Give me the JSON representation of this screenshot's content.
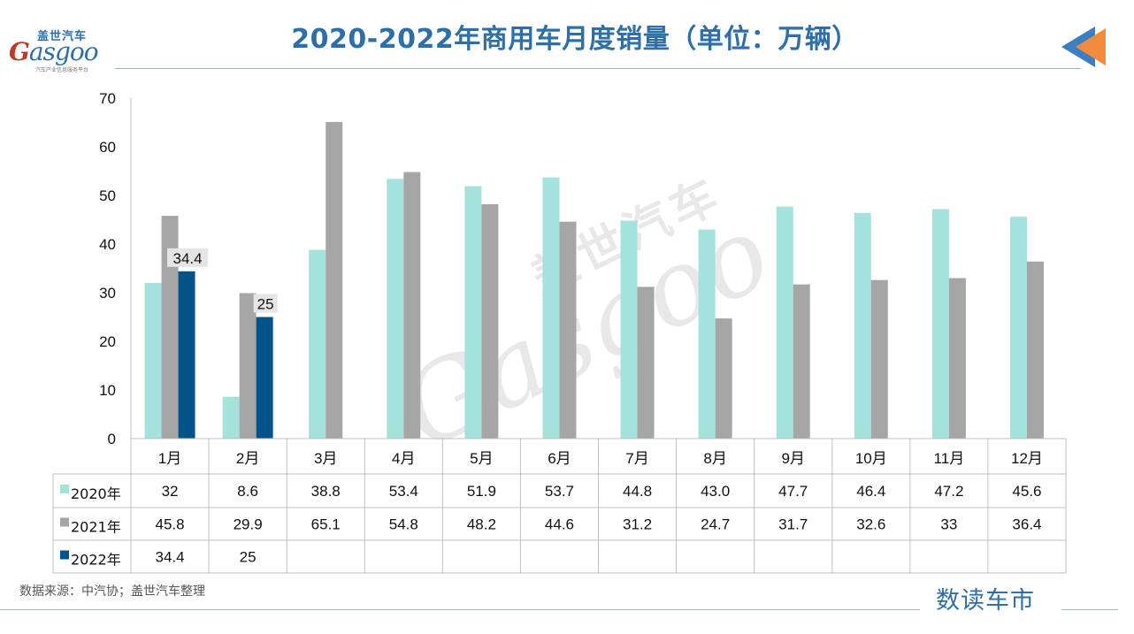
{
  "header": {
    "title": "2020-2022年商用车月度销量（单位：万辆）",
    "logo_cn": "盖世汽车",
    "logo_en_initial": "G",
    "logo_en_rest": "asgoo",
    "logo_sub": "汽车产业信息服务平台"
  },
  "watermark": {
    "cn": "盖世汽车",
    "en": "Gasgoo"
  },
  "footer": {
    "source": "数据来源：中汽协；盖世汽车整理",
    "brand": "数读车市"
  },
  "colors": {
    "s2020": "#a4e2dc",
    "s2021": "#a6a6a6",
    "s2022": "#02538a",
    "title": "#2e6fa8",
    "accent_orange": "#f08c3a",
    "accent_blue": "#3d7ec2"
  },
  "chart_data": {
    "type": "bar",
    "title": "2020-2022年商用车月度销量（单位：万辆）",
    "categories": [
      "1月",
      "2月",
      "3月",
      "4月",
      "5月",
      "6月",
      "7月",
      "8月",
      "9月",
      "10月",
      "11月",
      "12月"
    ],
    "ylim": [
      0,
      70
    ],
    "yticks": [
      0,
      10,
      20,
      30,
      40,
      50,
      60,
      70
    ],
    "grid": false,
    "legend": "data-table",
    "series": [
      {
        "name": "2020年",
        "values": [
          32,
          8.6,
          38.8,
          53.4,
          51.9,
          53.7,
          44.8,
          43.0,
          47.7,
          46.4,
          47.2,
          45.6
        ],
        "labels": [
          "32",
          "8.6",
          "38.8",
          "53.4",
          "51.9",
          "53.7",
          "44.8",
          "43.0",
          "47.7",
          "46.4",
          "47.2",
          "45.6"
        ]
      },
      {
        "name": "2021年",
        "values": [
          45.8,
          29.9,
          65.1,
          54.8,
          48.2,
          44.6,
          31.2,
          24.7,
          31.7,
          32.6,
          33,
          36.4
        ],
        "labels": [
          "45.8",
          "29.9",
          "65.1",
          "54.8",
          "48.2",
          "44.6",
          "31.2",
          "24.7",
          "31.7",
          "32.6",
          "33",
          "36.4"
        ]
      },
      {
        "name": "2022年",
        "values": [
          34.4,
          25,
          null,
          null,
          null,
          null,
          null,
          null,
          null,
          null,
          null,
          null
        ],
        "labels": [
          "34.4",
          "25",
          "",
          "",
          "",
          "",
          "",
          "",
          "",
          "",
          "",
          ""
        ]
      }
    ],
    "data_labels": {
      "series": "2022年"
    }
  }
}
